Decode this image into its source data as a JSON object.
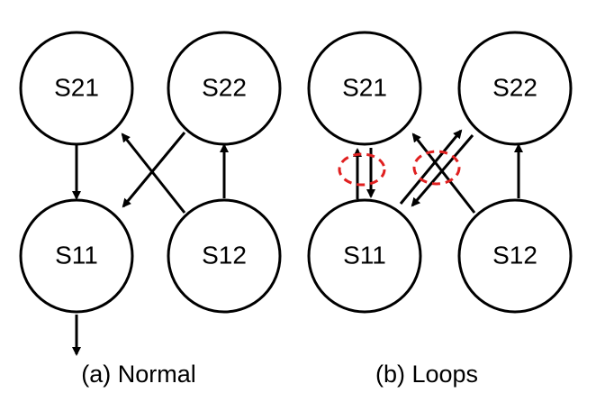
{
  "diagram": {
    "panel_a": {
      "caption": "(a) Normal",
      "nodes": {
        "s21": "S21",
        "s22": "S22",
        "s11": "S11",
        "s12": "S12"
      }
    },
    "panel_b": {
      "caption": "(b) Loops",
      "nodes": {
        "s21": "S21",
        "s22": "S22",
        "s11": "S11",
        "s12": "S12"
      }
    }
  },
  "colors": {
    "node_stroke": "#000000",
    "edge": "#000000",
    "loop_marker": "#e02020",
    "background": "#ffffff"
  }
}
